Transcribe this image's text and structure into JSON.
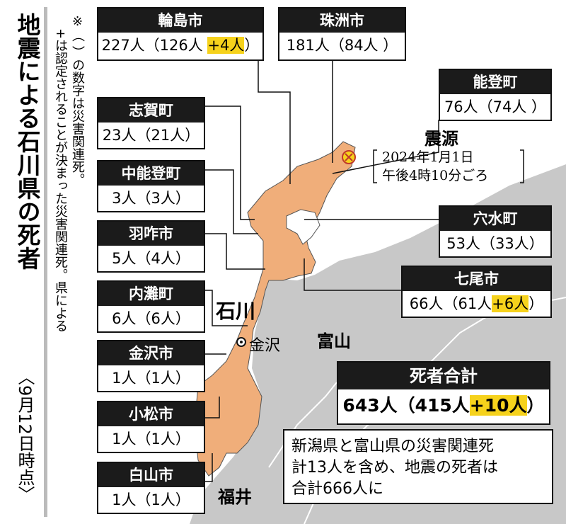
{
  "header": {
    "title": "地震による石川県の死者",
    "date": "〈9月12日時点〉"
  },
  "note": [
    "※（ ）の数字は災害関連死。",
    "+は認定されることが決まった災害関連死。県による"
  ],
  "epicenter": {
    "label": "震源",
    "detail": [
      "2024年1月1日",
      "午後4時10分ごろ"
    ]
  },
  "map_labels": {
    "ishikawa": "石川",
    "toyama": "富山",
    "fukui": "福井",
    "kanazawa": "金沢"
  },
  "municipalities": [
    {
      "name": "輪島市",
      "detail": "227人（126人 ",
      "added": "+4人",
      "detail_end": "）"
    },
    {
      "name": "珠洲市",
      "detail": "181人（84人 ）"
    },
    {
      "name": "能登町",
      "detail": "76人（74人 ）"
    },
    {
      "name": "志賀町",
      "detail": "23人（21人）"
    },
    {
      "name": "中能登町",
      "detail": "3人（3人）"
    },
    {
      "name": "穴水町",
      "detail": "53人（33人）"
    },
    {
      "name": "羽咋市",
      "detail": "5人（4人）"
    },
    {
      "name": "七尾市",
      "detail": "66人（61人",
      "added": "+6人",
      "detail_end": "）"
    },
    {
      "name": "内灘町",
      "detail": "6人（6人）"
    },
    {
      "name": "金沢市",
      "detail": "1人（1人）"
    },
    {
      "name": "小松市",
      "detail": "1人（1人）"
    },
    {
      "name": "白山市",
      "detail": "1人（1人）"
    }
  ],
  "total": {
    "name": "死者合計",
    "detail": "643人（415人",
    "added": "+10人",
    "detail_end": "）"
  },
  "summary": [
    "新潟県と富山県の災害関連死",
    "計13人を含め、地震の死者は",
    "合計666人に"
  ]
}
